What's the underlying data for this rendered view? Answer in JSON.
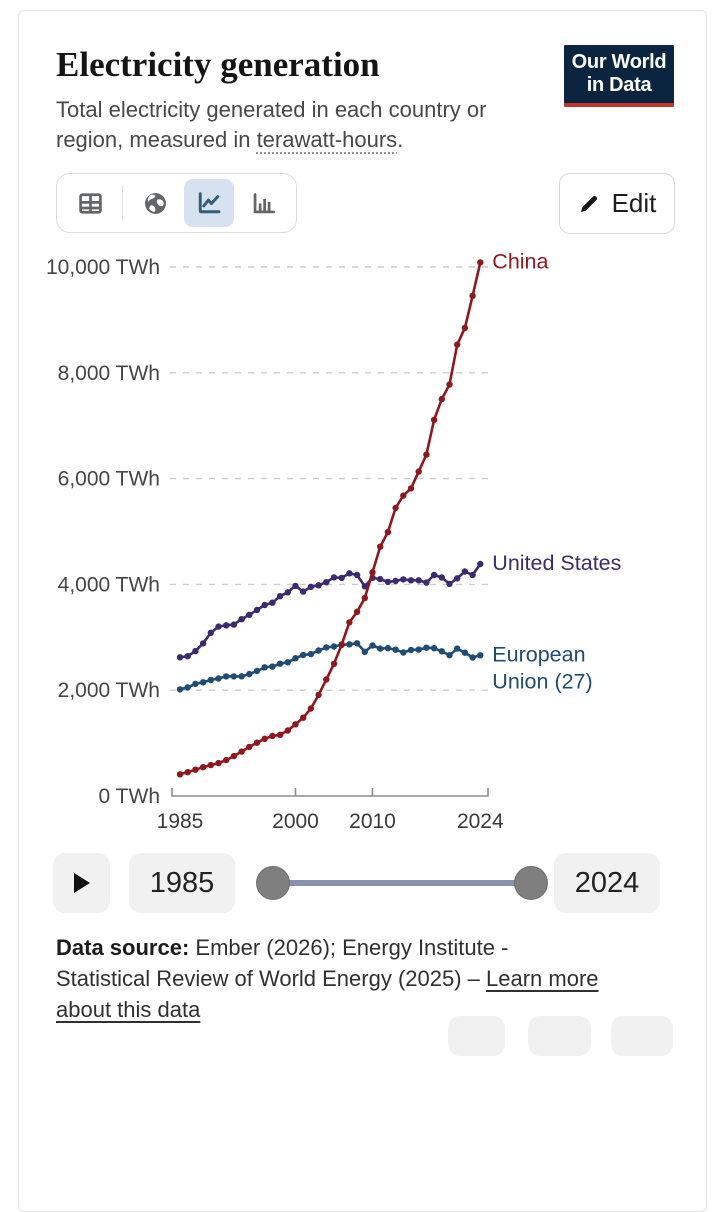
{
  "header": {
    "title": "Electricity generation",
    "subtitle_line1": "Total electricity generated in each country or",
    "subtitle_line2_prefix": "region, measured in ",
    "subtitle_term": "terawatt-hours",
    "subtitle_suffix": "."
  },
  "logo": {
    "line1": "Our World",
    "line2": "in Data",
    "bg_color": "#0b2440",
    "stripe_color": "#c2362b"
  },
  "toolbar": {
    "edit_label": "Edit",
    "icons": [
      "table-view",
      "map-view",
      "line-chart-view",
      "bar-chart-view"
    ],
    "selected_icon": "line-chart-view",
    "selected_bg": "#d6e2f0"
  },
  "chart_data": {
    "type": "line",
    "title": "Electricity generation",
    "unit": "TWh",
    "ylim": [
      0,
      10000
    ],
    "grid": "horizontal-dashed",
    "legend_position": "end-of-line-labels",
    "years": [
      1985,
      1986,
      1987,
      1988,
      1989,
      1990,
      1991,
      1992,
      1993,
      1994,
      1995,
      1996,
      1997,
      1998,
      1999,
      2000,
      2001,
      2002,
      2003,
      2004,
      2005,
      2006,
      2007,
      2008,
      2009,
      2010,
      2011,
      2012,
      2013,
      2014,
      2015,
      2016,
      2017,
      2018,
      2019,
      2020,
      2021,
      2022,
      2023,
      2024
    ],
    "series": [
      {
        "name": "United States",
        "color": "#3c2a70",
        "label_lines": [
          "United States"
        ],
        "values": [
          2621,
          2643,
          2740,
          2884,
          3085,
          3203,
          3226,
          3241,
          3343,
          3425,
          3517,
          3611,
          3655,
          3777,
          3851,
          3971,
          3864,
          3955,
          3983,
          4042,
          4133,
          4123,
          4209,
          4178,
          3964,
          4125,
          4100,
          4048,
          4066,
          4094,
          4078,
          4077,
          4034,
          4178,
          4130,
          4009,
          4115,
          4243,
          4178,
          4386
        ]
      },
      {
        "name": "European Union (27)",
        "color": "#1f4b75",
        "label_lines": [
          "European",
          "Union (27)"
        ],
        "values": [
          2016,
          2053,
          2119,
          2149,
          2192,
          2222,
          2261,
          2260,
          2263,
          2304,
          2363,
          2432,
          2446,
          2501,
          2528,
          2604,
          2666,
          2683,
          2751,
          2810,
          2827,
          2856,
          2868,
          2886,
          2725,
          2845,
          2786,
          2796,
          2765,
          2712,
          2760,
          2767,
          2803,
          2794,
          2736,
          2662,
          2787,
          2708,
          2618,
          2660
        ]
      },
      {
        "name": "China",
        "color": "#92161d",
        "label_lines": [
          "China"
        ],
        "values": [
          411,
          450,
          497,
          545,
          585,
          621,
          678,
          754,
          839,
          928,
          1007,
          1081,
          1134,
          1157,
          1239,
          1356,
          1481,
          1654,
          1911,
          2203,
          2500,
          2866,
          3282,
          3482,
          3742,
          4228,
          4713,
          4988,
          5447,
          5678,
          5815,
          6133,
          6453,
          7111,
          7503,
          7779,
          8534,
          8848,
          9456,
          10087
        ]
      }
    ],
    "yticks": [
      {
        "value": 10000,
        "label": "10,000 TWh"
      },
      {
        "value": 8000,
        "label": "8,000 TWh"
      },
      {
        "value": 6000,
        "label": "6,000 TWh"
      },
      {
        "value": 4000,
        "label": "4,000 TWh"
      },
      {
        "value": 2000,
        "label": "2,000 TWh"
      },
      {
        "value": 0,
        "label": "0 TWh"
      }
    ],
    "xticks": [
      {
        "year": 1985,
        "label": "1985"
      },
      {
        "year": 2000,
        "label": "2000"
      },
      {
        "year": 2010,
        "label": "2010"
      },
      {
        "year": 2024,
        "label": "2024"
      }
    ]
  },
  "timeline": {
    "start_year": "1985",
    "end_year": "2024"
  },
  "footer": {
    "label": "Data source:",
    "line1_rest": " Ember (2026); Energy Institute -",
    "line2_text": "Statistical Review of World Energy (2025) – ",
    "link_part1": "Learn more",
    "link_part2": "about this data"
  }
}
